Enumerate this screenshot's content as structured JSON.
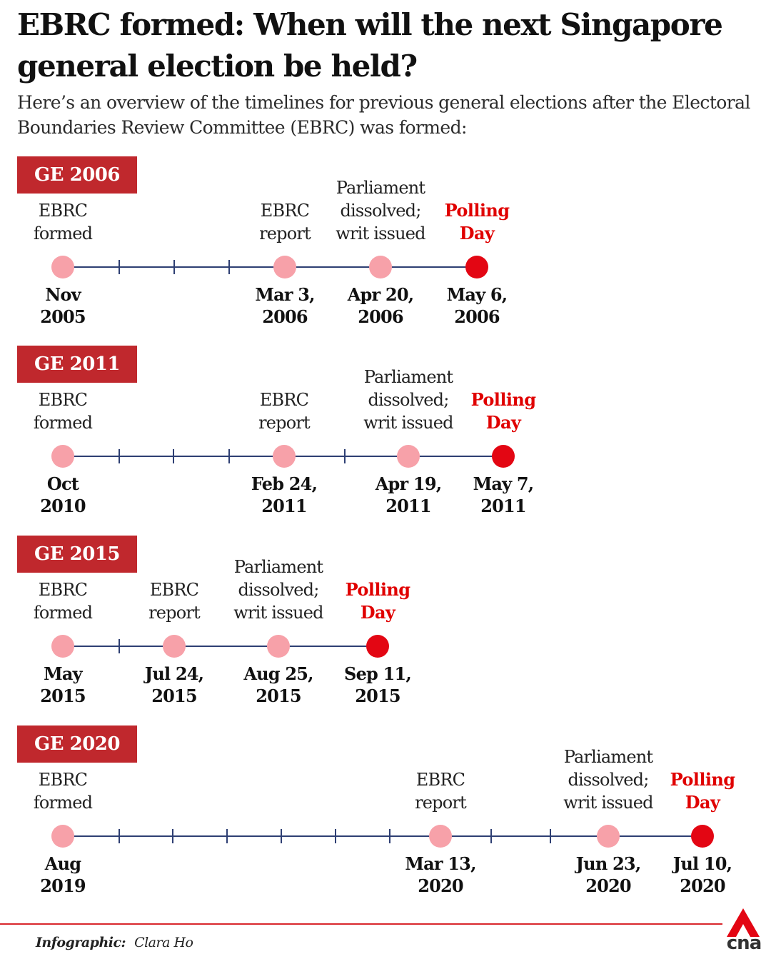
{
  "header": {
    "title": "EBRC formed: When will the next Singapore general election be held?",
    "subtitle": "Here’s an overview of the timelines for previous general elections after the Electoral Boundaries Review Committee (EBRC) was formed:"
  },
  "colors": {
    "badge": "#c0282d",
    "line": "#2e3f73",
    "milestone_dot": "#f7a1a9",
    "polling_dot": "#e30613",
    "polling_text": "#e00000"
  },
  "timelines": [
    {
      "badge": "GE 2006",
      "events": [
        {
          "label": [
            "EBRC",
            "formed"
          ],
          "date": [
            "Nov",
            "2005"
          ]
        },
        {
          "label": [
            "EBRC",
            "report"
          ],
          "date": [
            "Mar 3,",
            "2006"
          ]
        },
        {
          "label": [
            "Parliament",
            "dissolved;",
            "writ issued"
          ],
          "date": [
            "Apr 20,",
            "2006"
          ]
        },
        {
          "label": [
            "Polling",
            "Day"
          ],
          "date": [
            "May 6,",
            "2006"
          ],
          "polling": true
        }
      ]
    },
    {
      "badge": "GE 2011",
      "events": [
        {
          "label": [
            "EBRC",
            "formed"
          ],
          "date": [
            "Oct",
            "2010"
          ]
        },
        {
          "label": [
            "EBRC",
            "report"
          ],
          "date": [
            "Feb 24,",
            "2011"
          ]
        },
        {
          "label": [
            "Parliament",
            "dissolved;",
            "writ issued"
          ],
          "date": [
            "Apr 19,",
            "2011"
          ]
        },
        {
          "label": [
            "Polling",
            "Day"
          ],
          "date": [
            "May 7,",
            "2011"
          ],
          "polling": true
        }
      ]
    },
    {
      "badge": "GE 2015",
      "events": [
        {
          "label": [
            "EBRC",
            "formed"
          ],
          "date": [
            "May",
            "2015"
          ]
        },
        {
          "label": [
            "EBRC",
            "report"
          ],
          "date": [
            "Jul 24,",
            "2015"
          ]
        },
        {
          "label": [
            "Parliament",
            "dissolved;",
            "writ issued"
          ],
          "date": [
            "Aug 25,",
            "2015"
          ]
        },
        {
          "label": [
            "Polling",
            "Day"
          ],
          "date": [
            "Sep 11,",
            "2015"
          ],
          "polling": true
        }
      ]
    },
    {
      "badge": "GE 2020",
      "events": [
        {
          "label": [
            "EBRC",
            "formed"
          ],
          "date": [
            "Aug",
            "2019"
          ]
        },
        {
          "label": [
            "EBRC",
            "report"
          ],
          "date": [
            "Mar 13,",
            "2020"
          ]
        },
        {
          "label": [
            "Parliament",
            "dissolved;",
            "writ issued"
          ],
          "date": [
            "Jun 23,",
            "2020"
          ]
        },
        {
          "label": [
            "Polling",
            "Day"
          ],
          "date": [
            "Jul 10,",
            "2020"
          ],
          "polling": true
        }
      ]
    }
  ],
  "footer": {
    "credit_label": "Infographic:",
    "credit_name": "Clara Ho",
    "logo_text": "cna"
  }
}
